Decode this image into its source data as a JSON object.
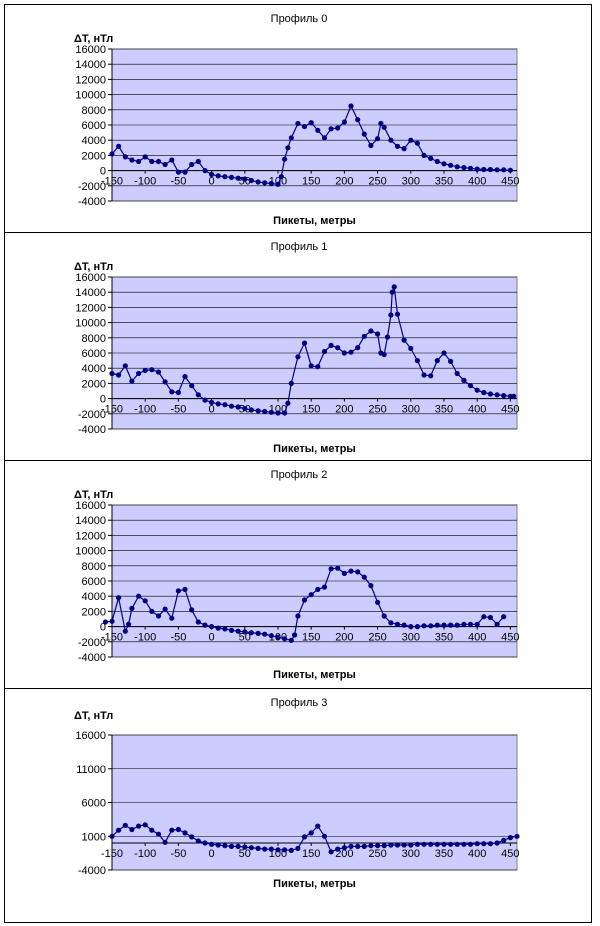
{
  "colors": {
    "plot_bg": "#ccccff",
    "series": "#000080",
    "grid": "#000000"
  },
  "chart_data": [
    {
      "type": "line",
      "title": "Профиль 0",
      "ylabel": "ΔT, нТл",
      "xlabel": "Пикеты, метры",
      "xlim": [
        -150,
        460
      ],
      "ylim": [
        -4000,
        16000
      ],
      "yticks": [
        -4000,
        -2000,
        0,
        2000,
        4000,
        6000,
        8000,
        10000,
        12000,
        14000,
        16000
      ],
      "xticks": [
        -150,
        -100,
        -50,
        0,
        50,
        100,
        150,
        200,
        250,
        300,
        350,
        400,
        450
      ],
      "grid": true,
      "series": [
        {
          "x": [
            -150,
            -140,
            -130,
            -120,
            -110,
            -100,
            -90,
            -80,
            -70,
            -60,
            -50,
            -40,
            -30,
            -20,
            -10,
            0,
            10,
            20,
            30,
            40,
            50,
            60,
            70,
            80,
            90,
            100,
            105,
            110,
            115,
            120,
            130,
            140,
            150,
            160,
            170,
            180,
            190,
            200,
            210,
            220,
            230,
            240,
            250,
            255,
            260,
            270,
            280,
            290,
            300,
            310,
            320,
            330,
            340,
            350,
            360,
            370,
            380,
            390,
            400,
            410,
            420,
            430,
            440,
            450
          ],
          "y": [
            2200,
            3200,
            1800,
            1400,
            1200,
            1800,
            1200,
            1200,
            800,
            1400,
            -200,
            -200,
            800,
            1200,
            0,
            -500,
            -700,
            -800,
            -900,
            -1000,
            -1100,
            -1300,
            -1500,
            -1600,
            -1700,
            -1800,
            -800,
            1500,
            3000,
            4300,
            6200,
            5800,
            6300,
            5300,
            4300,
            5500,
            5600,
            6400,
            8500,
            6700,
            4800,
            3300,
            4200,
            6200,
            5700,
            4000,
            3200,
            2900,
            4000,
            3600,
            2000,
            1600,
            1200,
            900,
            700,
            500,
            400,
            300,
            200,
            150,
            150,
            100,
            100,
            50
          ]
        }
      ]
    },
    {
      "type": "line",
      "title": "Профиль 1",
      "ylabel": "ΔT, нТл",
      "xlabel": "Пикеты, метры",
      "xlim": [
        -150,
        460
      ],
      "ylim": [
        -4000,
        16000
      ],
      "yticks": [
        -4000,
        -2000,
        0,
        2000,
        4000,
        6000,
        8000,
        10000,
        12000,
        14000,
        16000
      ],
      "xticks": [
        -150,
        -100,
        -50,
        0,
        50,
        100,
        150,
        200,
        250,
        300,
        350,
        400,
        450
      ],
      "grid": true,
      "series": [
        {
          "x": [
            -150,
            -140,
            -130,
            -120,
            -110,
            -100,
            -90,
            -80,
            -70,
            -60,
            -50,
            -40,
            -30,
            -20,
            -10,
            0,
            10,
            20,
            30,
            40,
            50,
            60,
            70,
            80,
            90,
            100,
            110,
            115,
            120,
            130,
            140,
            150,
            160,
            170,
            180,
            190,
            200,
            210,
            220,
            230,
            240,
            250,
            255,
            260,
            265,
            270,
            272,
            275,
            280,
            290,
            300,
            310,
            320,
            330,
            340,
            350,
            360,
            370,
            380,
            390,
            400,
            410,
            420,
            430,
            440,
            450,
            455
          ],
          "y": [
            3300,
            3100,
            4300,
            2300,
            3300,
            3700,
            3800,
            3500,
            2200,
            900,
            800,
            2900,
            1700,
            500,
            -200,
            -500,
            -700,
            -800,
            -1000,
            -1100,
            -1300,
            -1500,
            -1600,
            -1700,
            -1800,
            -1900,
            -1900,
            -600,
            2000,
            5500,
            7300,
            4300,
            4200,
            6200,
            7000,
            6700,
            6000,
            6100,
            6700,
            8200,
            8900,
            8500,
            6000,
            5800,
            8100,
            11000,
            14000,
            14700,
            11100,
            7700,
            6600,
            5000,
            3100,
            3000,
            5000,
            6000,
            4900,
            3300,
            2400,
            1700,
            1100,
            800,
            600,
            500,
            400,
            300,
            300
          ]
        }
      ]
    },
    {
      "type": "line",
      "title": "Профиль 2",
      "ylabel": "ΔT, нТл",
      "xlabel": "Пикеты, метры",
      "xlim": [
        -150,
        460
      ],
      "ylim": [
        -4000,
        16000
      ],
      "yticks": [
        -4000,
        -2000,
        0,
        2000,
        4000,
        6000,
        8000,
        10000,
        12000,
        14000,
        16000
      ],
      "xticks": [
        -150,
        -100,
        -50,
        0,
        50,
        100,
        150,
        200,
        250,
        300,
        350,
        400,
        450
      ],
      "grid": true,
      "series": [
        {
          "x": [
            -160,
            -150,
            -140,
            -130,
            -125,
            -120,
            -110,
            -100,
            -90,
            -80,
            -70,
            -60,
            -50,
            -40,
            -30,
            -20,
            -10,
            0,
            10,
            20,
            30,
            40,
            50,
            60,
            70,
            80,
            90,
            100,
            110,
            120,
            125,
            130,
            140,
            150,
            160,
            170,
            180,
            190,
            200,
            210,
            220,
            230,
            240,
            250,
            260,
            270,
            280,
            290,
            300,
            310,
            320,
            330,
            340,
            350,
            360,
            370,
            380,
            390,
            400,
            410,
            420,
            430,
            440
          ],
          "y": [
            600,
            700,
            3800,
            -600,
            300,
            2400,
            4000,
            3400,
            2000,
            1400,
            2300,
            1100,
            4700,
            4900,
            2200,
            600,
            200,
            0,
            -200,
            -300,
            -500,
            -600,
            -700,
            -800,
            -900,
            -1000,
            -1200,
            -1400,
            -1600,
            -1800,
            -1100,
            1400,
            3500,
            4200,
            4900,
            5200,
            7600,
            7700,
            7000,
            7300,
            7200,
            6500,
            5400,
            3200,
            1400,
            500,
            300,
            200,
            0,
            0,
            100,
            100,
            200,
            200,
            200,
            200,
            300,
            300,
            300,
            1300,
            1200,
            300,
            1300
          ]
        }
      ]
    },
    {
      "type": "line",
      "title": "Профиль 3",
      "ylabel": "ΔT, нТл",
      "xlabel": "Пикеты, метры",
      "xlim": [
        -150,
        460
      ],
      "ylim": [
        -4000,
        16000
      ],
      "yticks": [
        -4000,
        1000,
        6000,
        11000,
        16000
      ],
      "xticks": [
        -150,
        -100,
        -50,
        0,
        50,
        100,
        150,
        200,
        250,
        300,
        350,
        400,
        450
      ],
      "grid": true,
      "series": [
        {
          "x": [
            -150,
            -140,
            -130,
            -120,
            -110,
            -100,
            -90,
            -80,
            -70,
            -60,
            -50,
            -40,
            -30,
            -20,
            -10,
            0,
            10,
            20,
            30,
            40,
            50,
            60,
            70,
            80,
            90,
            100,
            110,
            120,
            130,
            140,
            150,
            160,
            170,
            180,
            190,
            200,
            210,
            220,
            230,
            240,
            250,
            260,
            270,
            280,
            290,
            300,
            310,
            320,
            330,
            340,
            350,
            360,
            370,
            380,
            390,
            400,
            410,
            420,
            430,
            440,
            450,
            460
          ],
          "y": [
            1000,
            1900,
            2600,
            2000,
            2500,
            2700,
            1900,
            1300,
            100,
            1900,
            2000,
            1500,
            900,
            300,
            0,
            -200,
            -300,
            -400,
            -500,
            -500,
            -600,
            -700,
            -800,
            -900,
            -900,
            -1000,
            -1000,
            -1100,
            -800,
            900,
            1500,
            2500,
            1000,
            -1300,
            -900,
            -700,
            -500,
            -500,
            -500,
            -400,
            -400,
            -400,
            -300,
            -300,
            -300,
            -300,
            -200,
            -200,
            -200,
            -200,
            -200,
            -200,
            -200,
            -200,
            -200,
            -100,
            -100,
            -100,
            0,
            400,
            800,
            1000
          ]
        }
      ]
    }
  ]
}
